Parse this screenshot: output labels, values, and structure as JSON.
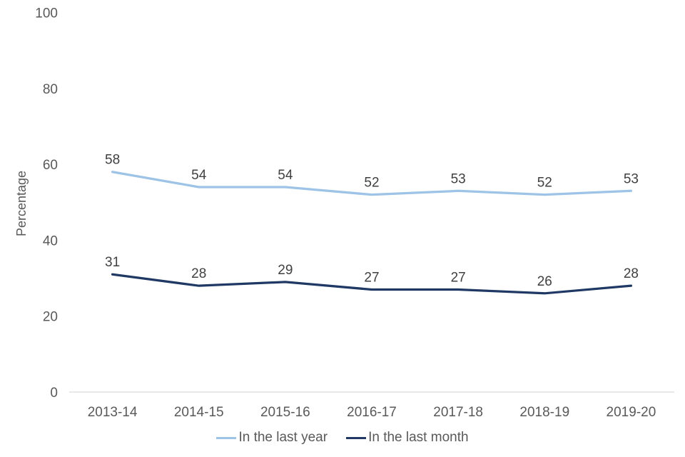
{
  "chart_data": {
    "type": "line",
    "title": "",
    "categories": [
      "2013-14",
      "2014-15",
      "2015-16",
      "2016-17",
      "2017-18",
      "2018-19",
      "2019-20"
    ],
    "series": [
      {
        "id": "in-the-last-year",
        "name": "In the last year",
        "color": "#9DC3E6",
        "values": [
          58,
          54,
          54,
          52,
          53,
          52,
          53
        ]
      },
      {
        "id": "in-the-last-month",
        "name": "In the last month",
        "color": "#1F3864",
        "values": [
          31,
          28,
          29,
          27,
          27,
          26,
          28
        ]
      }
    ],
    "xlabel": "",
    "ylabel": "Percentage",
    "ylim": [
      0,
      100
    ],
    "yticks": [
      0,
      20,
      40,
      60,
      80,
      100
    ],
    "grid": false,
    "data_labels": true,
    "legend_position": "bottom",
    "colors": {
      "axis_line": "#D9D9D9",
      "tick_text": "#595959",
      "data_label_text": "#404040",
      "legend_text": "#595959",
      "background": "#FFFFFF"
    }
  }
}
